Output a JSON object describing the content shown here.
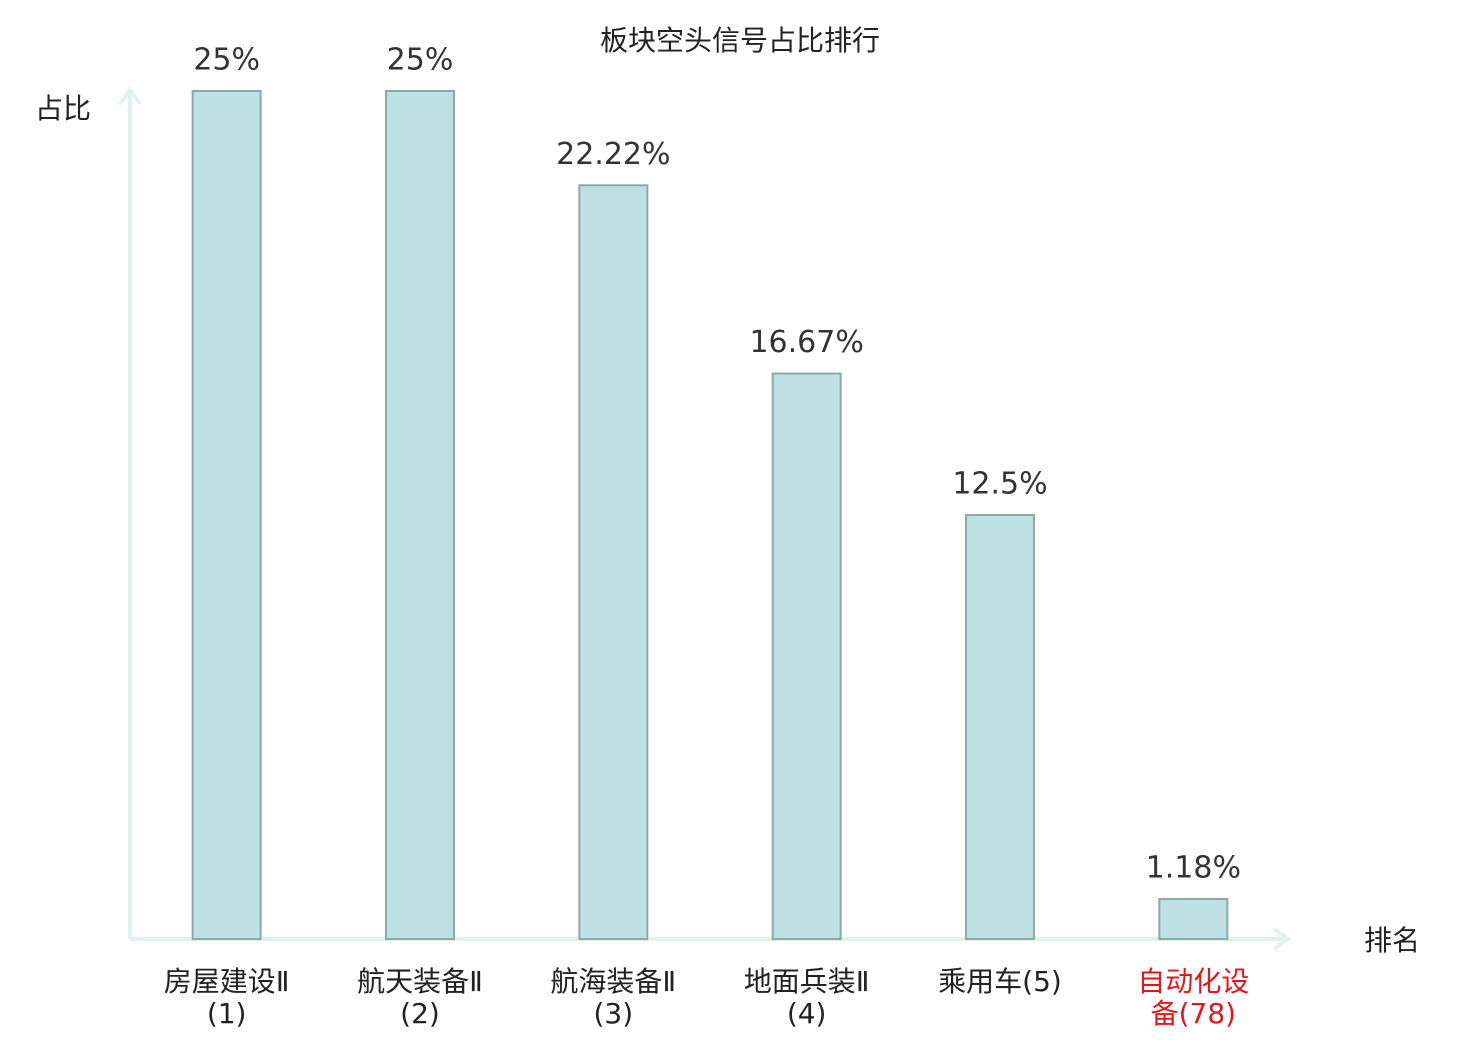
{
  "chart_data": {
    "type": "bar",
    "title": "板块空头信号占比排行",
    "y_label": "占比",
    "x_label": "排名",
    "categories": [
      "房屋建设Ⅱ(1)",
      "航天装备Ⅱ(2)",
      "航海装备Ⅱ(3)",
      "地面兵装Ⅱ(4)",
      "乘用车(5)",
      "自动化设备(78)"
    ],
    "category_colors": [
      "#222222",
      "#222222",
      "#222222",
      "#222222",
      "#222222",
      "#e8141b"
    ],
    "values": [
      25,
      25,
      22.22,
      16.67,
      12.5,
      1.18
    ],
    "value_labels": [
      "25%",
      "25%",
      "22.22%",
      "16.67%",
      "12.5%",
      "1.18%"
    ],
    "color": "#bde0e3",
    "edge_color": "#8aa9ab",
    "ylim": [
      0,
      25
    ],
    "grid": false
  }
}
